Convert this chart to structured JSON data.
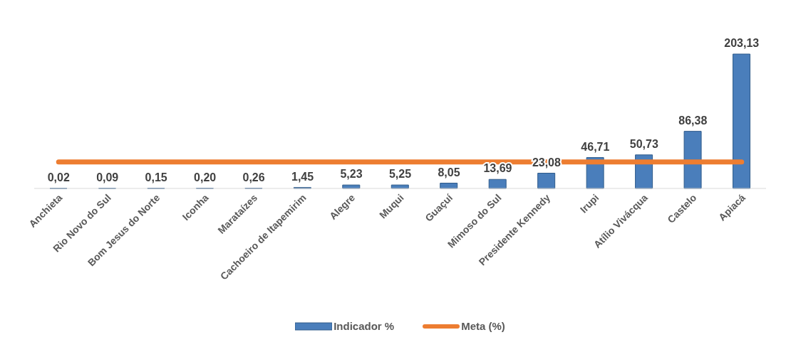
{
  "chart_data": {
    "type": "bar",
    "categories": [
      "Anchieta",
      "Rio Novo do Sul",
      "Bom Jesus do Norte",
      "Iconha",
      "Marataízes",
      "Cachoeiro de Itapemirim",
      "Alegre",
      "Muqui",
      "Guaçuí",
      "Mimoso do Sul",
      "Presidente Kennedy",
      "Irupi",
      "Atílio Vivácqua",
      "Castelo",
      "Apiacá"
    ],
    "series": [
      {
        "name": "Indicador %",
        "color": "#4a7ebb",
        "values": [
          0.02,
          0.09,
          0.15,
          0.2,
          0.26,
          1.45,
          5.23,
          5.25,
          8.05,
          13.69,
          23.08,
          46.71,
          50.73,
          86.38,
          203.13
        ],
        "value_labels": [
          "0,02",
          "0,09",
          "0,15",
          "0,20",
          "0,26",
          "1,45",
          "5,23",
          "5,25",
          "8,05",
          "13,69",
          "23,08",
          "46,71",
          "50,73",
          "86,38",
          "203,13"
        ]
      },
      {
        "name": "Meta (%)",
        "type": "line",
        "color": "#ed7d31",
        "values": [
          40,
          40,
          40,
          40,
          40,
          40,
          40,
          40,
          40,
          40,
          40,
          40,
          40,
          40,
          40
        ]
      }
    ],
    "legend": "bottom",
    "grid": false,
    "marker": "none",
    "line_style": "solid"
  }
}
